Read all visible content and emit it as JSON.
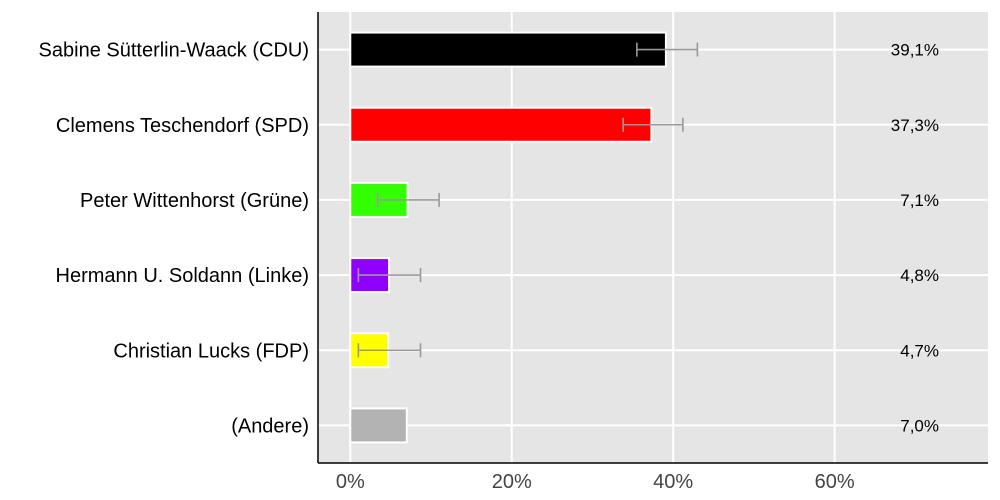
{
  "chart_data": {
    "type": "bar",
    "orientation": "horizontal",
    "title": "",
    "xlabel": "",
    "ylabel": "",
    "categories": [
      "Sabine Sütterlin-Waack (CDU)",
      "Clemens Teschendorf (SPD)",
      "Peter Wittenhorst (Grüne)",
      "Hermann U. Soldann (Linke)",
      "Christian Lucks (FDP)",
      "(Andere)"
    ],
    "values": [
      39.1,
      37.3,
      7.1,
      4.8,
      4.7,
      7.0
    ],
    "value_labels": [
      "39,1%",
      "37,3%",
      "7,1%",
      "4,8%",
      "4,7%",
      "7,0%"
    ],
    "error_bars": [
      [
        35.5,
        43.0
      ],
      [
        33.8,
        41.2
      ],
      [
        3.4,
        11.0
      ],
      [
        1.0,
        8.7
      ],
      [
        1.0,
        8.7
      ],
      null
    ],
    "colors": [
      "#000000",
      "#ff0000",
      "#33ff00",
      "#8f00ff",
      "#ffff00",
      "#b3b3b3"
    ],
    "xticks": [
      0,
      20,
      40,
      60
    ],
    "xtick_labels": [
      "0%",
      "20%",
      "40%",
      "60%"
    ],
    "xlim": [
      -4,
      79
    ],
    "grid": true,
    "background": "#e5e5e5",
    "errorbar_color": "#999999"
  }
}
